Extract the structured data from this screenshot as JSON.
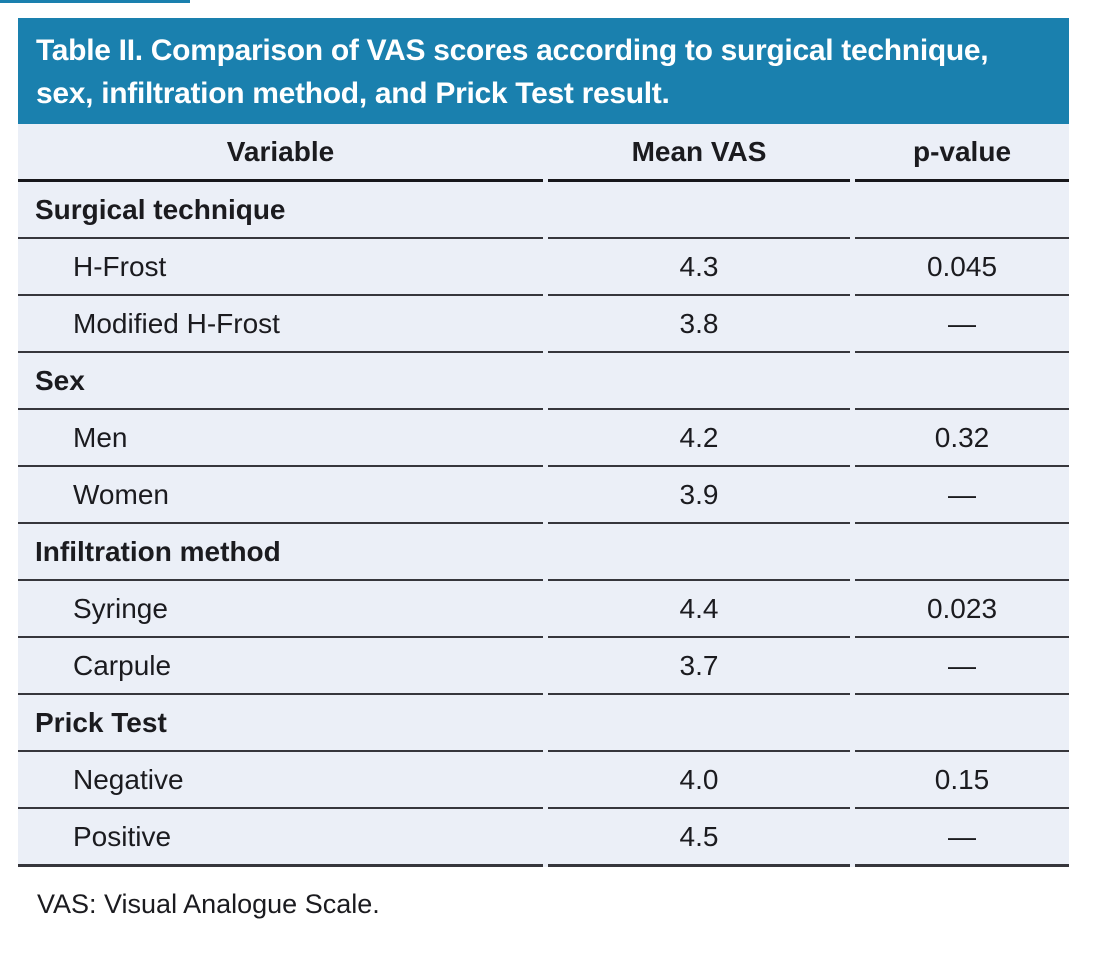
{
  "title": "Table II. Comparison of VAS scores according to surgical technique, sex, infiltration method, and Prick Test result.",
  "columns": {
    "variable": "Variable",
    "mean_vas": "Mean VAS",
    "p_value": "p-value"
  },
  "sections": [
    {
      "label": "Surgical technique",
      "rows": [
        {
          "variable": "H-Frost",
          "mean_vas": "4.3",
          "p_value": "0.045"
        },
        {
          "variable": "Modified H-Frost",
          "mean_vas": "3.8",
          "p_value": "—"
        }
      ]
    },
    {
      "label": "Sex",
      "rows": [
        {
          "variable": "Men",
          "mean_vas": "4.2",
          "p_value": "0.32"
        },
        {
          "variable": "Women",
          "mean_vas": "3.9",
          "p_value": "—"
        }
      ]
    },
    {
      "label": "Infiltration method",
      "rows": [
        {
          "variable": "Syringe",
          "mean_vas": "4.4",
          "p_value": "0.023"
        },
        {
          "variable": "Carpule",
          "mean_vas": "3.7",
          "p_value": "—"
        }
      ]
    },
    {
      "label": "Prick Test",
      "rows": [
        {
          "variable": "Negative",
          "mean_vas": "4.0",
          "p_value": "0.15"
        },
        {
          "variable": "Positive",
          "mean_vas": "4.5",
          "p_value": "—"
        }
      ]
    }
  ],
  "footnote": "VAS: Visual Analogue Scale.",
  "colors": {
    "accent_blue": "#1a80ae",
    "row_background": "#ebeff7",
    "rule_heavy": "#17171b",
    "rule_row": "#36363c"
  }
}
